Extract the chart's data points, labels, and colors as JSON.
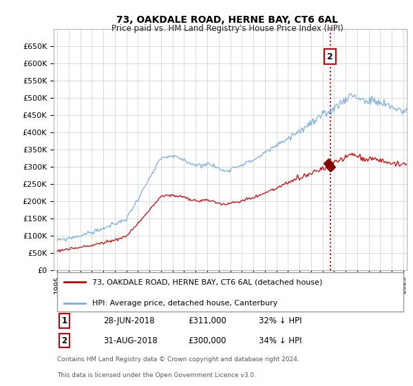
{
  "title": "73, OAKDALE ROAD, HERNE BAY, CT6 6AL",
  "subtitle": "Price paid vs. HM Land Registry's House Price Index (HPI)",
  "hpi_label": "HPI: Average price, detached house, Canterbury",
  "price_label": "73, OAKDALE ROAD, HERNE BAY, CT6 6AL (detached house)",
  "hpi_color": "#7aade0",
  "price_color": "#cc0000",
  "vline_color": "#cc0000",
  "sale_marker_color": "#880000",
  "sale1": {
    "year": 2018.49,
    "price": 311000,
    "label": "1",
    "date_str": "28-JUN-2018",
    "pct": "32% ↓ HPI"
  },
  "sale2": {
    "year": 2018.66,
    "price": 300000,
    "label": "2",
    "date_str": "31-AUG-2018",
    "pct": "34% ↓ HPI"
  },
  "footer1": "Contains HM Land Registry data © Crown copyright and database right 2024.",
  "footer2": "This data is licensed under the Open Government Licence v3.0.",
  "background_color": "#ffffff",
  "plot_background": "#ffffff",
  "ylim_max": 700000,
  "yticks": [
    0,
    50000,
    100000,
    150000,
    200000,
    250000,
    300000,
    350000,
    400000,
    450000,
    500000,
    550000,
    600000,
    650000
  ],
  "xlim_start": 1994.7,
  "xlim_end": 2025.3
}
